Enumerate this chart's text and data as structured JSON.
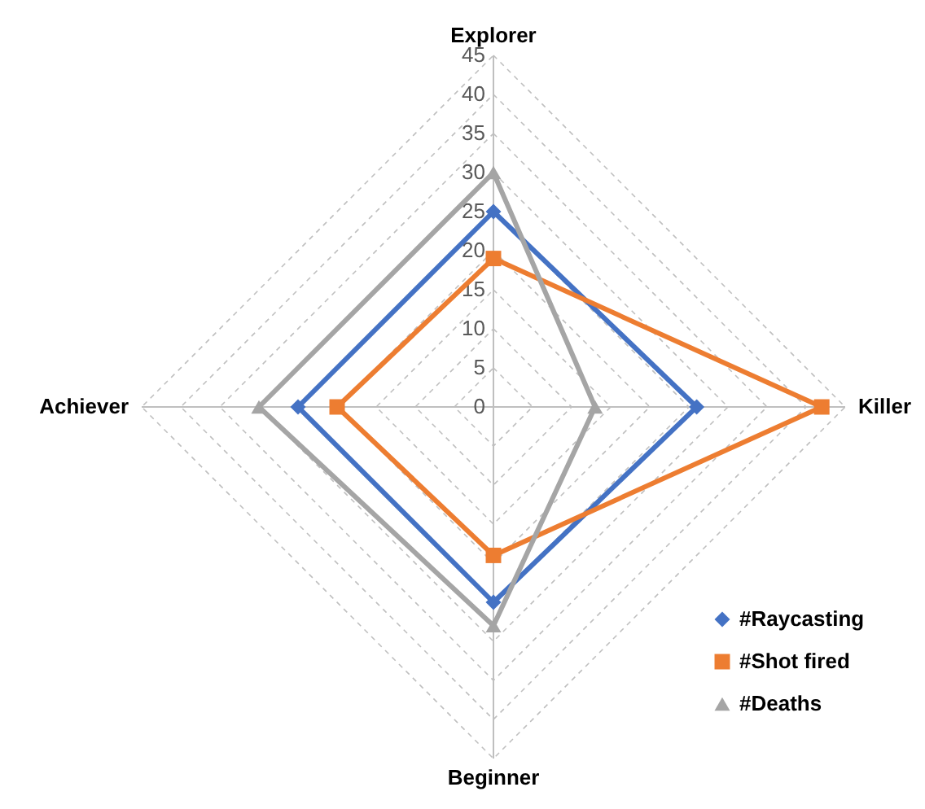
{
  "chart_data": {
    "type": "radar",
    "categories": [
      "Explorer",
      "Killer",
      "Beginner",
      "Achiever"
    ],
    "ylim": [
      0,
      45
    ],
    "yticks": [
      0,
      5,
      10,
      15,
      20,
      25,
      30,
      35,
      40,
      45
    ],
    "grid": true,
    "legend": "bottom right",
    "series": [
      {
        "name": "#Raycasting",
        "color": "#4472c4",
        "marker": "diamond",
        "values": [
          25,
          26,
          25,
          25
        ]
      },
      {
        "name": "#Shot fired",
        "color": "#ed7d31",
        "marker": "square",
        "values": [
          19,
          42,
          19,
          20
        ]
      },
      {
        "name": "#Deaths",
        "color": "#a5a5a5",
        "marker": "triangle",
        "values": [
          30,
          13,
          28,
          30
        ]
      }
    ]
  }
}
